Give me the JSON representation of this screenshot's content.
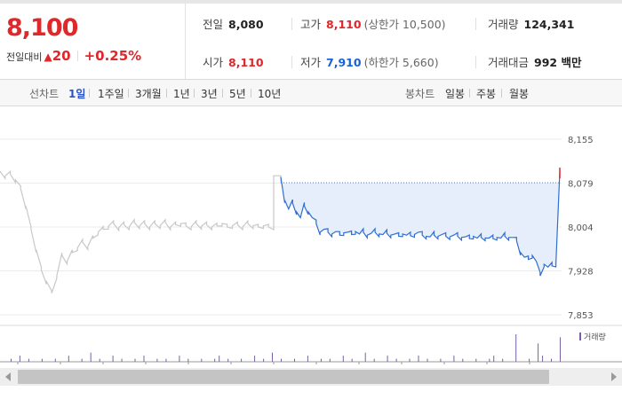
{
  "quote": {
    "price": "8,100",
    "change_label": "전일대비",
    "change_arrow": "▲",
    "change_value": "20",
    "change_pct": "+0.25%",
    "prev_close_label": "전일",
    "prev_close": "8,080",
    "open_label": "시가",
    "open": "8,110",
    "high_label": "고가",
    "high": "8,110",
    "upper_limit": "(상한가 10,500)",
    "low_label": "저가",
    "low": "7,910",
    "lower_limit": "(하한가 5,660)",
    "volume_label": "거래량",
    "volume": "124,341",
    "amount_label": "거래대금",
    "amount": "992 백만"
  },
  "toolbar": {
    "line_label": "선차트",
    "periods": [
      "1일",
      "1주일",
      "3개월",
      "1년",
      "3년",
      "5년",
      "10년"
    ],
    "active_period": "1일",
    "candle_label": "봉차트",
    "candles": [
      "일봉",
      "주봉",
      "월봉"
    ]
  },
  "colors": {
    "up": "#e0272a",
    "down": "#1a62d6",
    "prev_day_line": "#c8c8c8",
    "today_line": "#2f6fd1",
    "fill": "#e6eefb",
    "volume_bar": "#7a5fa8"
  },
  "chart_data": {
    "type": "line",
    "ylim": [
      7853,
      8155
    ],
    "y_ticks": [
      "8,155",
      "8,079",
      "8,004",
      "7,928",
      "7,853"
    ],
    "volume_legend": "거래량",
    "series": [
      {
        "values": [
          8100,
          8092,
          8095,
          8085,
          8070,
          8040,
          8000,
          7965,
          7930,
          7910,
          7890,
          7920,
          7955,
          7945,
          7960,
          7968,
          7978,
          7970,
          7985,
          7995,
          8000,
          8005,
          8010,
          8003,
          8008,
          8004,
          8012,
          8006,
          8010,
          8004,
          8010,
          8006,
          8012,
          8004,
          8008,
          8010,
          8006,
          8004,
          8010,
          8005,
          8008,
          8004,
          8006,
          8010,
          8004,
          8006,
          8008,
          8004,
          8010,
          8006,
          8004,
          8006,
          8004,
          8004
        ]
      },
      {
        "values": [
          8090,
          8050,
          8035,
          8045,
          8030,
          8020,
          8040,
          8030,
          8020,
          8010,
          7995,
          8000,
          7995,
          7992,
          7996,
          7990,
          7994,
          7995,
          7991,
          7996,
          7992,
          7995,
          7990,
          7993,
          7995,
          7992,
          7991,
          7993,
          7990,
          7992,
          7988,
          7992,
          7990,
          7989,
          7991,
          7995,
          7990,
          7988,
          7987,
          7990,
          7988,
          7991,
          7988,
          7987,
          7990,
          7988,
          7986,
          7987,
          7984,
          7988,
          7985,
          7986,
          7985,
          7985,
          7984,
          7986,
          7985,
          7988,
          7986,
          7986,
          7980,
          7960,
          7952,
          7948,
          7955,
          7945,
          7920,
          7940,
          7935,
          7937,
          7940,
          8100
        ],
        "prev_close_ref": 8080
      }
    ],
    "volume": [
      0,
      0,
      1,
      0,
      2,
      0,
      1,
      0,
      0,
      1,
      0,
      0,
      1,
      0,
      0,
      2,
      0,
      0,
      1,
      0,
      3,
      0,
      1,
      0,
      0,
      2,
      0,
      1,
      0,
      0,
      1,
      0,
      2,
      0,
      0,
      1,
      0,
      1,
      0,
      0,
      2,
      0,
      1,
      0,
      0,
      1,
      0,
      0,
      1,
      2,
      0,
      1,
      0,
      0,
      1,
      0,
      0,
      2,
      0,
      1,
      0,
      3,
      0,
      1,
      0,
      0,
      1,
      0,
      0,
      2,
      0,
      0,
      1,
      0,
      1,
      0,
      0,
      2,
      0,
      1,
      0,
      0,
      3,
      0,
      1,
      0,
      0,
      2,
      0,
      1,
      0,
      0,
      1,
      0,
      2,
      0,
      1,
      0,
      0,
      1,
      0,
      0,
      2,
      0,
      1,
      0,
      0,
      1,
      0,
      0,
      1,
      2,
      0,
      1,
      0,
      0,
      9,
      0,
      0,
      1,
      0,
      6,
      2,
      0,
      1,
      0,
      8
    ]
  }
}
